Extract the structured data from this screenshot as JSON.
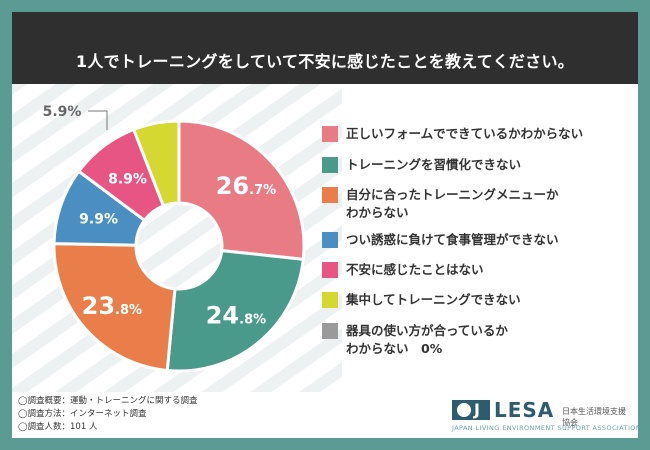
{
  "title": "1人でトレーニングをしていて不安に感じたことを教えてください。",
  "chart_data": {
    "type": "pie",
    "variant": "donut",
    "title": "1人でトレーニングをしていて不安に感じたことを教えてください。",
    "categories": [
      "正しいフォームでできているかわからない",
      "トレーニングを習慣化できない",
      "自分に合ったトレーニングメニューか\nわからない",
      "つい誘惑に負けて食事管理ができない",
      "不安に感じたことはない",
      "集中してトレーニングできない",
      "器具の使い方が合っているか\nわからない　0%"
    ],
    "values": [
      26.7,
      24.8,
      23.8,
      9.9,
      8.9,
      5.9,
      0
    ],
    "value_labels": [
      {
        "main": "26",
        "dec": ".7%"
      },
      {
        "main": "24",
        "dec": ".8%"
      },
      {
        "main": "23",
        "dec": ".8%"
      },
      {
        "main": "9.9",
        "dec": "%"
      },
      {
        "main": "8.9",
        "dec": "%"
      },
      {
        "main": "5.9",
        "dec": "%"
      },
      {
        "main": "",
        "dec": ""
      }
    ],
    "colors": [
      "#e87b84",
      "#4a9a8c",
      "#ea7e4a",
      "#4b8fc2",
      "#e75585",
      "#d4d831",
      "#9a9a9a"
    ]
  },
  "notes": [
    "◯調査概要：運動・トレーニングに関する調査",
    "◯調査方法：インターネット調査",
    "◯調査人数：101 人"
  ],
  "logo": {
    "mark": "J",
    "name": "LESA",
    "jp": "日本生活環境支援協会",
    "en": "JAPAN LIVING ENVIRONMENT SUPPORT ASSOCIATION"
  }
}
